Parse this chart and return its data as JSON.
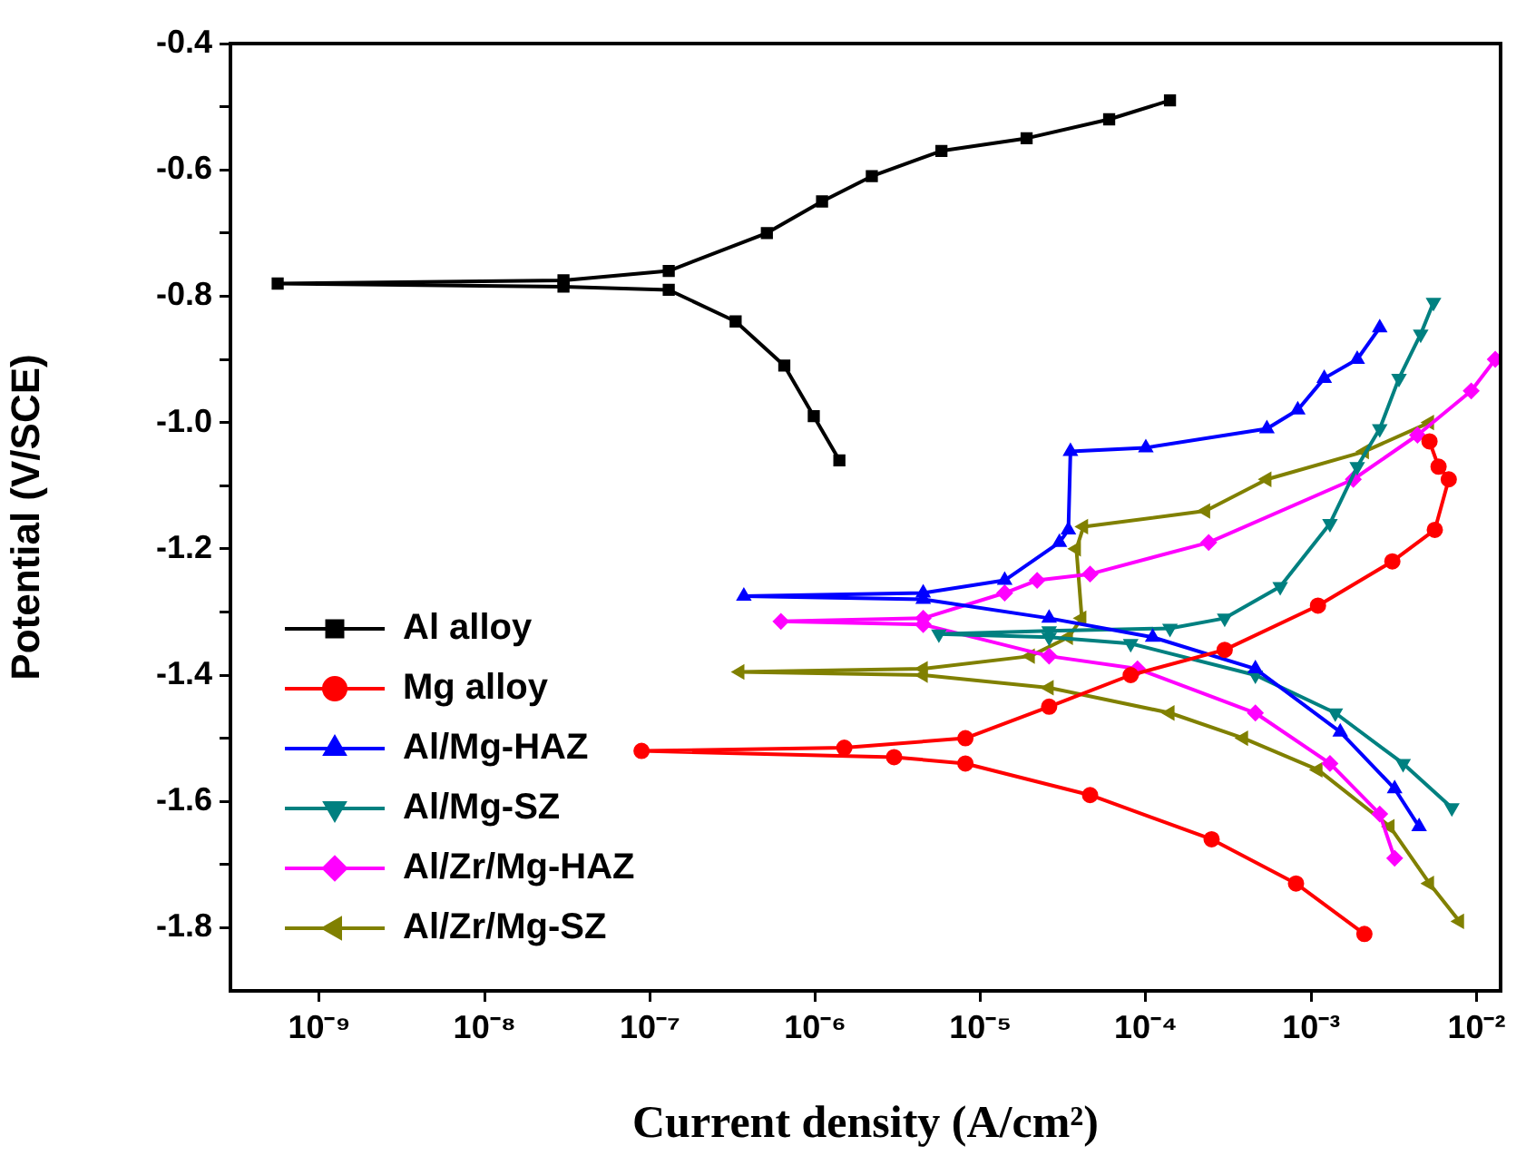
{
  "chart_data": {
    "type": "line",
    "xlabel": "Current density (A/cm²)",
    "ylabel": "Potential (V/SCE)",
    "log": "x",
    "grid": false,
    "legend": "bottom left",
    "line_style": "solid",
    "xlim": [
      2.9e-10,
      0.014
    ],
    "xticks": [
      {
        "value": 1e-09,
        "label": "10⁻⁹"
      },
      {
        "value": 1e-08,
        "label": "10⁻⁸"
      },
      {
        "value": 1e-07,
        "label": "10⁻⁷"
      },
      {
        "value": 1e-06,
        "label": "10⁻⁶"
      },
      {
        "value": 1e-05,
        "label": "10⁻⁵"
      },
      {
        "value": 0.0001,
        "label": "10⁻⁴"
      },
      {
        "value": 0.001,
        "label": "10⁻³"
      },
      {
        "value": 0.01,
        "label": "10⁻²"
      }
    ],
    "ylim": [
      -1.9,
      -0.4
    ],
    "yticks": [
      -0.4,
      {
        "value": -0.5,
        "label": null
      },
      -0.6,
      {
        "value": -0.7,
        "label": null
      },
      -0.8,
      {
        "value": -0.9,
        "label": null
      },
      {
        "value": -1,
        "label": "-1.0"
      },
      {
        "value": -1.1,
        "label": null
      },
      -1.2,
      {
        "value": -1.3,
        "label": null
      },
      -1.4,
      {
        "value": -1.5,
        "label": null
      },
      -1.6,
      {
        "value": -1.7,
        "label": null
      },
      -1.8
    ],
    "series": [
      {
        "name": "Al alloy",
        "color": "#000000",
        "marker": "square",
        "x": [
          0.00014,
          6e-05,
          1.9e-05,
          5.8e-06,
          2.2e-06,
          1.1e-06,
          5.1e-07,
          1.3e-07,
          3e-08,
          5.6e-10,
          3e-08,
          1.3e-07,
          3.3e-07,
          6.5e-07,
          9.8e-07,
          1.4e-06
        ],
        "values": [
          -0.49,
          -0.52,
          -0.55,
          -0.57,
          -0.61,
          -0.65,
          -0.7,
          -0.76,
          -0.775,
          -0.78,
          -0.785,
          -0.79,
          -0.84,
          -0.91,
          -0.99,
          -1.06
        ]
      },
      {
        "name": "Mg alloy",
        "color": "#ff0000",
        "marker": "circle",
        "x": [
          0.0052,
          0.0059,
          0.0068,
          0.0056,
          0.0031,
          0.0011,
          0.0003,
          8.1e-05,
          2.6e-05,
          8.1e-06,
          1.5e-06,
          8.9e-08,
          3e-06,
          8.1e-06,
          4.6e-05,
          0.00025,
          0.00081,
          0.0021
        ],
        "values": [
          -1.03,
          -1.07,
          -1.09,
          -1.17,
          -1.22,
          -1.29,
          -1.36,
          -1.4,
          -1.45,
          -1.5,
          -1.515,
          -1.52,
          -1.53,
          -1.54,
          -1.59,
          -1.66,
          -1.73,
          -1.81
        ]
      },
      {
        "name": "Al/Mg-HAZ",
        "color": "#0000ff",
        "marker": "triangle",
        "x": [
          0.0026,
          0.0019,
          0.0012,
          0.00083,
          0.00054,
          0.0001,
          3.5e-05,
          3.4e-05,
          3e-05,
          1.4e-05,
          4.5e-06,
          3.7e-07,
          4.5e-06,
          2.6e-05,
          0.00011,
          0.00046,
          0.0015,
          0.0032,
          0.0045
        ],
        "values": [
          -0.85,
          -0.9,
          -0.93,
          -0.98,
          -1.01,
          -1.04,
          -1.046,
          -1.17,
          -1.19,
          -1.25,
          -1.27,
          -1.275,
          -1.28,
          -1.31,
          -1.34,
          -1.39,
          -1.49,
          -1.58,
          -1.64
        ]
      },
      {
        "name": "Al/Mg-SZ",
        "color": "#008080",
        "marker": "triangle-down",
        "x": [
          0.0055,
          0.0046,
          0.0034,
          0.0026,
          0.0019,
          0.0013,
          0.00065,
          0.0003,
          0.00014,
          2.6e-05,
          5.6e-06,
          2.6e-05,
          8.1e-05,
          0.00046,
          0.0014,
          0.0036,
          0.0071
        ],
        "values": [
          -0.81,
          -0.86,
          -0.93,
          -1.01,
          -1.07,
          -1.16,
          -1.26,
          -1.31,
          -1.326,
          -1.33,
          -1.335,
          -1.34,
          -1.35,
          -1.4,
          -1.46,
          -1.54,
          -1.61
        ]
      },
      {
        "name": "Al/Zr/Mg-HAZ",
        "color": "#ff00ff",
        "marker": "diamond",
        "x": [
          0.013,
          0.0093,
          0.0044,
          0.0018,
          0.00024,
          4.6e-05,
          2.2e-05,
          1.4e-05,
          4.5e-06,
          6.2e-07,
          4.5e-06,
          2.6e-05,
          8.9e-05,
          0.00046,
          0.0013,
          0.0026,
          0.0032
        ],
        "values": [
          -0.9,
          -0.95,
          -1.02,
          -1.09,
          -1.19,
          -1.24,
          -1.25,
          -1.27,
          -1.31,
          -1.315,
          -1.32,
          -1.37,
          -1.39,
          -1.46,
          -1.54,
          -1.62,
          -1.69
        ]
      },
      {
        "name": "Al/Zr/Mg-SZ",
        "color": "#808000",
        "marker": "triangle-left",
        "x": [
          0.0052,
          0.0021,
          0.00054,
          0.00023,
          4.2e-05,
          3.8e-05,
          4.1e-05,
          3.4e-05,
          2e-05,
          4.5e-06,
          3.5e-07,
          4.5e-06,
          2.6e-05,
          0.00014,
          0.00039,
          0.0011,
          0.003,
          0.0052,
          0.0079
        ],
        "values": [
          -1.0,
          -1.046,
          -1.09,
          -1.14,
          -1.165,
          -1.2,
          -1.31,
          -1.34,
          -1.37,
          -1.39,
          -1.395,
          -1.4,
          -1.42,
          -1.46,
          -1.5,
          -1.55,
          -1.64,
          -1.73,
          -1.79
        ]
      }
    ]
  }
}
